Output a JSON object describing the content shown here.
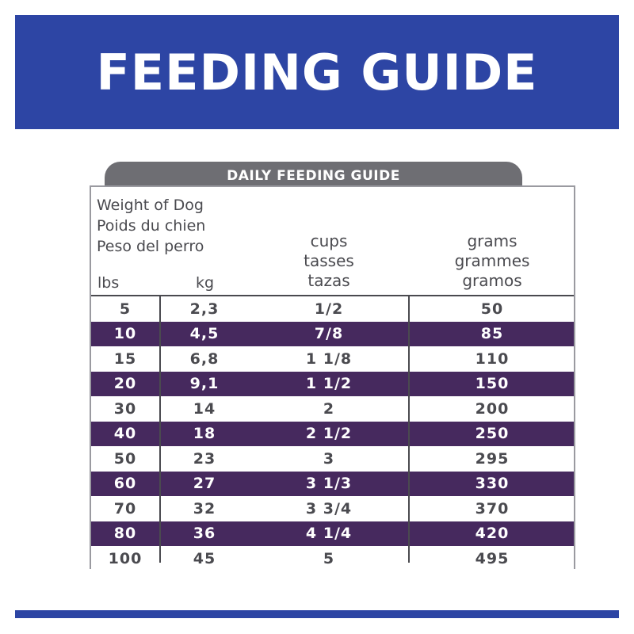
{
  "banner": {
    "title": "FEEDING GUIDE"
  },
  "tab": {
    "label": "DAILY FEEDING GUIDE"
  },
  "header": {
    "weight": [
      "Weight of Dog",
      "Poids du chien",
      "Peso del perro"
    ],
    "lbs": "lbs",
    "kg": "kg",
    "cups": [
      "cups",
      "tasses",
      "tazas"
    ],
    "grams": [
      "grams",
      "grammes",
      "gramos"
    ]
  },
  "rows": [
    {
      "lbs": "5",
      "kg": "2,3",
      "cups": "1/2",
      "grams": "50"
    },
    {
      "lbs": "10",
      "kg": "4,5",
      "cups": "7/8",
      "grams": "85"
    },
    {
      "lbs": "15",
      "kg": "6,8",
      "cups": "1 1/8",
      "grams": "110"
    },
    {
      "lbs": "20",
      "kg": "9,1",
      "cups": "1 1/2",
      "grams": "150"
    },
    {
      "lbs": "30",
      "kg": "14",
      "cups": "2",
      "grams": "200"
    },
    {
      "lbs": "40",
      "kg": "18",
      "cups": "2 1/2",
      "grams": "250"
    },
    {
      "lbs": "50",
      "kg": "23",
      "cups": "3",
      "grams": "295"
    },
    {
      "lbs": "60",
      "kg": "27",
      "cups": "3 1/3",
      "grams": "330"
    },
    {
      "lbs": "70",
      "kg": "32",
      "cups": "3 3/4",
      "grams": "370"
    },
    {
      "lbs": "80",
      "kg": "36",
      "cups": "4 1/4",
      "grams": "420"
    },
    {
      "lbs": "100",
      "kg": "45",
      "cups": "5",
      "grams": "495"
    }
  ],
  "colors": {
    "brand_blue": "#2d45a4",
    "row_purple": "#46295e",
    "tab_gray": "#6e6e73",
    "text_gray": "#4a4a4f"
  }
}
